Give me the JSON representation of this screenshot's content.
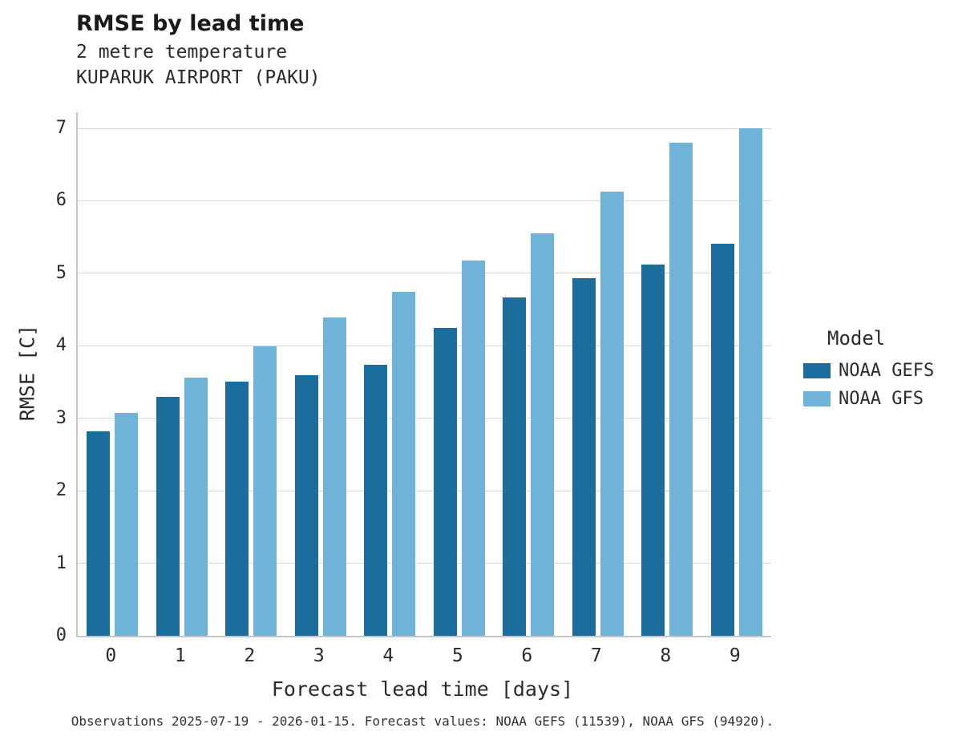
{
  "header": {
    "title": "RMSE by lead time",
    "subtitle1": "2 metre temperature",
    "subtitle2": "KUPARUK AIRPORT (PAKU)"
  },
  "legend": {
    "title": "Model"
  },
  "caption": "Observations 2025-07-19 - 2026-01-15. Forecast values: NOAA GEFS (11539), NOAA GFS (94920).",
  "chart_data": {
    "type": "bar",
    "title": "RMSE by lead time",
    "subtitle": [
      "2 metre temperature",
      "KUPARUK AIRPORT (PAKU)"
    ],
    "xlabel": "Forecast lead time [days]",
    "ylabel": "RMSE [C]",
    "categories": [
      "0",
      "1",
      "2",
      "3",
      "4",
      "5",
      "6",
      "7",
      "8",
      "9"
    ],
    "series": [
      {
        "name": "NOAA GEFS",
        "color": "#1b6d9d",
        "values": [
          2.82,
          3.3,
          3.51,
          3.59,
          3.74,
          4.25,
          4.67,
          4.93,
          5.12,
          5.41
        ]
      },
      {
        "name": "NOAA GFS",
        "color": "#6fb3d9",
        "values": [
          3.07,
          3.56,
          3.99,
          4.39,
          4.74,
          5.18,
          5.55,
          6.13,
          6.8,
          7.0
        ]
      }
    ],
    "ylim": [
      0,
      7
    ],
    "yticks": [
      0,
      1,
      2,
      3,
      4,
      5,
      6,
      7
    ],
    "grid": true,
    "legend_title": "Model",
    "legend_position": "right"
  },
  "colors": {
    "gefs": "#1b6d9d",
    "gfs": "#6fb3d9",
    "gridline": "#d8d8d8",
    "spine": "#c6c6c6"
  }
}
